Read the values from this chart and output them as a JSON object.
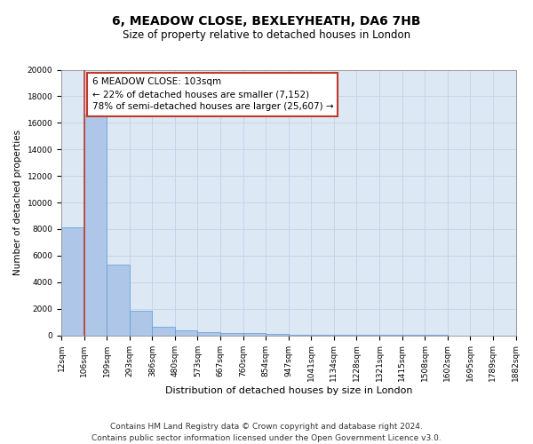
{
  "title_line1": "6, MEADOW CLOSE, BEXLEYHEATH, DA6 7HB",
  "title_line2": "Size of property relative to detached houses in London",
  "xlabel": "Distribution of detached houses by size in London",
  "ylabel": "Number of detached properties",
  "bar_values": [
    8100,
    16600,
    5300,
    1850,
    650,
    350,
    270,
    200,
    150,
    100,
    60,
    40,
    30,
    20,
    15,
    10,
    8,
    6,
    5,
    4
  ],
  "bar_labels": [
    "12sqm",
    "106sqm",
    "199sqm",
    "293sqm",
    "386sqm",
    "480sqm",
    "573sqm",
    "667sqm",
    "760sqm",
    "854sqm",
    "947sqm",
    "1041sqm",
    "1134sqm",
    "1228sqm",
    "1321sqm",
    "1415sqm",
    "1508sqm",
    "1602sqm",
    "1695sqm",
    "1789sqm",
    "1882sqm"
  ],
  "bar_color": "#aec6e8",
  "bar_edge_color": "#5b9bd5",
  "grid_color": "#c8d4e8",
  "background_color": "#dde8f5",
  "vline_color": "#c0392b",
  "annotation_text": "6 MEADOW CLOSE: 103sqm\n← 22% of detached houses are smaller (7,152)\n78% of semi-detached houses are larger (25,607) →",
  "annotation_box_color": "#c0392b",
  "ylim": [
    0,
    20000
  ],
  "yticks": [
    0,
    2000,
    4000,
    6000,
    8000,
    10000,
    12000,
    14000,
    16000,
    18000,
    20000
  ],
  "footnote": "Contains HM Land Registry data © Crown copyright and database right 2024.\nContains public sector information licensed under the Open Government Licence v3.0.",
  "title_fontsize": 10,
  "subtitle_fontsize": 8.5,
  "xlabel_fontsize": 8,
  "ylabel_fontsize": 7.5,
  "tick_fontsize": 6.5,
  "annotation_fontsize": 7.5,
  "footnote_fontsize": 6.5
}
